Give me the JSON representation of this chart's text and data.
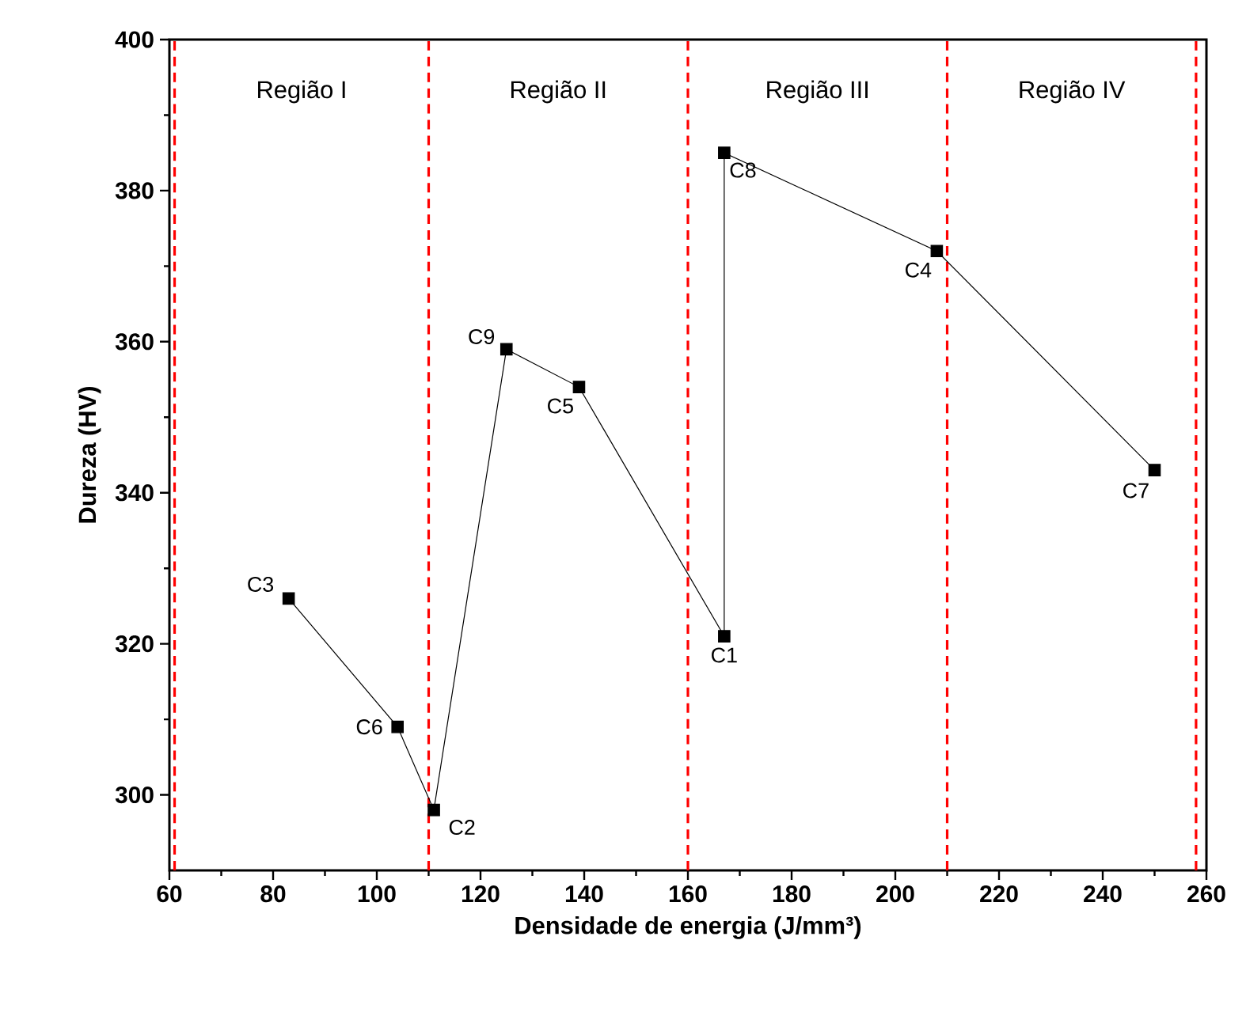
{
  "chart_data": {
    "type": "line",
    "xlabel": "Densidade de energia (J/mm³)",
    "ylabel": "Dureza (HV)",
    "x": [
      83,
      104,
      111,
      125,
      139,
      167,
      167,
      208,
      250
    ],
    "values": [
      326,
      309,
      298,
      359,
      354,
      321,
      385,
      372,
      343
    ],
    "color": "#000000",
    "marker": "square",
    "line_style": "solid",
    "grid": false,
    "xlim": [
      60,
      260
    ],
    "ylim": [
      290,
      400
    ],
    "xticks": [
      60,
      80,
      100,
      120,
      140,
      160,
      180,
      200,
      220,
      240,
      260
    ],
    "yticks": [
      300,
      320,
      340,
      360,
      380,
      400
    ],
    "ref_lines": [
      {
        "axis": "x",
        "value": 61,
        "color": "#ff0000",
        "line_style": "dashed"
      },
      {
        "axis": "x",
        "value": 110,
        "color": "#ff0000",
        "line_style": "dashed"
      },
      {
        "axis": "x",
        "value": 160,
        "color": "#ff0000",
        "line_style": "dashed"
      },
      {
        "axis": "x",
        "value": 210,
        "color": "#ff0000",
        "line_style": "dashed"
      },
      {
        "axis": "x",
        "value": 258,
        "color": "#ff0000",
        "line_style": "dashed"
      }
    ],
    "annotations": [
      "Região I",
      "Região II",
      "Região III",
      "Região IV",
      {
        "text": "C3",
        "x": 83,
        "y": 326
      },
      {
        "text": "C6",
        "x": 104,
        "y": 309
      },
      {
        "text": "C2",
        "x": 111,
        "y": 298
      },
      {
        "text": "C9",
        "x": 125,
        "y": 359
      },
      {
        "text": "C5",
        "x": 139,
        "y": 354
      },
      {
        "text": "C1",
        "x": 167,
        "y": 321
      },
      {
        "text": "C8",
        "x": 167,
        "y": 385
      },
      {
        "text": "C4",
        "x": 208,
        "y": 372
      },
      {
        "text": "C7",
        "x": 250,
        "y": 343
      }
    ]
  }
}
